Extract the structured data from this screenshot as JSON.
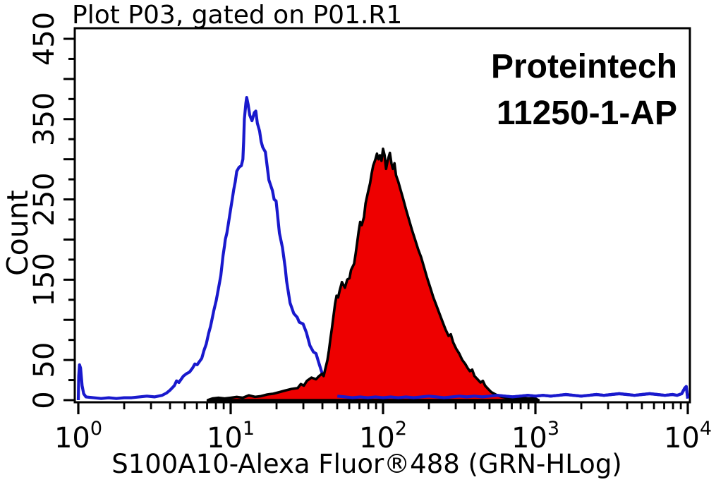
{
  "header": {
    "title": "Plot P03, gated on P01.R1"
  },
  "watermark": {
    "line1": "Proteintech",
    "line2": "11250-1-AP"
  },
  "colors": {
    "background": "#ffffff",
    "frame": "#000000",
    "control_blue": "#1919CD",
    "sample_fill_red": "#EE0000",
    "sample_outline": "#000000",
    "text": "#000000"
  },
  "chart_data": {
    "type": "area",
    "subtype": "flow-cytometry-overlay-histogram",
    "title": "Plot P03, gated on P01.R1",
    "xlabel": "S100A10-Alexa Fluor®488 (GRN-HLog)",
    "ylabel": "Count",
    "x_scale": "log10",
    "xlim": [
      1,
      10000
    ],
    "x_tick_exponents": [
      0,
      1,
      2,
      3,
      4
    ],
    "x_tick_base": "10",
    "ylim": [
      0,
      463
    ],
    "y_ticks_labeled": [
      0,
      50,
      150,
      250,
      350,
      450
    ],
    "y_tick_major_step": 50,
    "y_tick_minor_step": 25,
    "grid": false,
    "legend_position": "none",
    "annotations": [
      "Proteintech",
      "11250-1-AP"
    ],
    "series": [
      {
        "name": "control (unfilled blue outline)",
        "style": "line",
        "color": "#1919CD",
        "peak": {
          "x": 12.7,
          "count": 377
        },
        "points_log10x_count": [
          [
            0,
            0
          ],
          [
            0.003,
            30
          ],
          [
            0.008,
            44
          ],
          [
            0.015,
            40
          ],
          [
            0.025,
            18
          ],
          [
            0.035,
            8
          ],
          [
            0.05,
            4
          ],
          [
            0.1,
            3
          ],
          [
            0.15,
            2
          ],
          [
            0.2,
            3
          ],
          [
            0.25,
            2
          ],
          [
            0.3,
            3
          ],
          [
            0.35,
            3
          ],
          [
            0.4,
            4
          ],
          [
            0.45,
            5
          ],
          [
            0.5,
            4
          ],
          [
            0.55,
            6
          ],
          [
            0.58,
            9
          ],
          [
            0.6,
            12
          ],
          [
            0.63,
            18
          ],
          [
            0.645,
            24
          ],
          [
            0.66,
            22
          ],
          [
            0.675,
            26
          ],
          [
            0.69,
            30
          ],
          [
            0.71,
            33
          ],
          [
            0.73,
            35
          ],
          [
            0.75,
            40
          ],
          [
            0.765,
            45
          ],
          [
            0.78,
            44
          ],
          [
            0.795,
            48
          ],
          [
            0.81,
            52
          ],
          [
            0.825,
            62
          ],
          [
            0.84,
            70
          ],
          [
            0.855,
            83
          ],
          [
            0.868,
            92
          ],
          [
            0.88,
            103
          ],
          [
            0.89,
            112
          ],
          [
            0.905,
            124
          ],
          [
            0.92,
            139
          ],
          [
            0.935,
            155
          ],
          [
            0.95,
            180
          ],
          [
            0.96,
            193
          ],
          [
            0.965,
            200
          ],
          [
            0.975,
            208
          ],
          [
            0.985,
            220
          ],
          [
            1,
            238
          ],
          [
            1.01,
            250
          ],
          [
            1.02,
            262
          ],
          [
            1.03,
            272
          ],
          [
            1.04,
            285
          ],
          [
            1.055,
            290
          ],
          [
            1.07,
            292
          ],
          [
            1.08,
            300
          ],
          [
            1.085,
            322
          ],
          [
            1.09,
            350
          ],
          [
            1.1,
            370
          ],
          [
            1.105,
            377
          ],
          [
            1.115,
            368
          ],
          [
            1.125,
            355
          ],
          [
            1.14,
            348
          ],
          [
            1.155,
            358
          ],
          [
            1.165,
            360
          ],
          [
            1.175,
            345
          ],
          [
            1.19,
            335
          ],
          [
            1.2,
            322
          ],
          [
            1.21,
            315
          ],
          [
            1.228,
            309
          ],
          [
            1.251,
            274
          ],
          [
            1.274,
            261
          ],
          [
            1.285,
            250
          ],
          [
            1.298,
            248
          ],
          [
            1.32,
            208
          ],
          [
            1.34,
            190
          ],
          [
            1.358,
            165
          ],
          [
            1.367,
            148
          ],
          [
            1.39,
            121
          ],
          [
            1.414,
            108
          ],
          [
            1.437,
            103
          ],
          [
            1.45,
            97
          ],
          [
            1.475,
            95
          ],
          [
            1.497,
            84
          ],
          [
            1.52,
            68
          ],
          [
            1.543,
            60
          ],
          [
            1.56,
            58
          ],
          [
            1.576,
            48
          ],
          [
            1.599,
            34
          ],
          [
            1.613,
            24
          ],
          [
            1.632,
            17
          ],
          [
            1.65,
            11
          ],
          [
            1.669,
            8
          ],
          [
            1.7,
            5
          ],
          [
            1.75,
            4
          ],
          [
            1.8,
            3
          ],
          [
            1.85,
            4
          ],
          [
            1.9,
            3
          ],
          [
            1.95,
            4
          ],
          [
            2,
            3
          ],
          [
            2.05,
            4
          ],
          [
            2.1,
            3
          ],
          [
            2.15,
            4
          ],
          [
            2.2,
            3
          ],
          [
            2.25,
            4
          ],
          [
            2.3,
            5
          ],
          [
            2.35,
            4
          ],
          [
            2.4,
            3
          ],
          [
            2.45,
            4
          ],
          [
            2.5,
            5
          ],
          [
            2.55,
            4
          ],
          [
            2.6,
            5
          ],
          [
            2.65,
            4
          ],
          [
            2.7,
            5
          ],
          [
            2.75,
            6
          ],
          [
            2.8,
            5
          ],
          [
            2.85,
            4
          ],
          [
            2.9,
            5
          ],
          [
            2.95,
            6
          ],
          [
            3,
            5
          ],
          [
            3.05,
            6
          ],
          [
            3.1,
            5
          ],
          [
            3.15,
            6
          ],
          [
            3.2,
            7
          ],
          [
            3.25,
            6
          ],
          [
            3.3,
            5
          ],
          [
            3.35,
            6
          ],
          [
            3.4,
            7
          ],
          [
            3.45,
            6
          ],
          [
            3.5,
            7
          ],
          [
            3.55,
            8
          ],
          [
            3.6,
            7
          ],
          [
            3.65,
            6
          ],
          [
            3.7,
            7
          ],
          [
            3.75,
            8
          ],
          [
            3.8,
            7
          ],
          [
            3.85,
            6
          ],
          [
            3.9,
            7
          ],
          [
            3.93,
            6
          ],
          [
            3.96,
            8
          ],
          [
            3.98,
            15
          ],
          [
            3.99,
            17
          ],
          [
            4,
            2
          ]
        ]
      },
      {
        "name": "S100A10-Alexa Fluor 488 (red filled)",
        "style": "filled-area",
        "fill": "#EE0000",
        "stroke": "#000000",
        "peak": {
          "x": 100,
          "count": 313
        },
        "points_log10x_count": [
          [
            0.85,
            0
          ],
          [
            0.88,
            2
          ],
          [
            0.92,
            3
          ],
          [
            0.96,
            2
          ],
          [
            1,
            3
          ],
          [
            1.04,
            4
          ],
          [
            1.08,
            3
          ],
          [
            1.12,
            6
          ],
          [
            1.16,
            4
          ],
          [
            1.2,
            5
          ],
          [
            1.24,
            7
          ],
          [
            1.28,
            8
          ],
          [
            1.32,
            10
          ],
          [
            1.36,
            12
          ],
          [
            1.4,
            14
          ],
          [
            1.44,
            15
          ],
          [
            1.46,
            20
          ],
          [
            1.48,
            18
          ],
          [
            1.5,
            24
          ],
          [
            1.53,
            28
          ],
          [
            1.56,
            26
          ],
          [
            1.58,
            30
          ],
          [
            1.6,
            33
          ],
          [
            1.61,
            30
          ],
          [
            1.62,
            38
          ],
          [
            1.635,
            50
          ],
          [
            1.645,
            62
          ],
          [
            1.655,
            77
          ],
          [
            1.665,
            90
          ],
          [
            1.675,
            105
          ],
          [
            1.685,
            120
          ],
          [
            1.695,
            130
          ],
          [
            1.705,
            128
          ],
          [
            1.715,
            136
          ],
          [
            1.73,
            147
          ],
          [
            1.75,
            140
          ],
          [
            1.765,
            150
          ],
          [
            1.78,
            152
          ],
          [
            1.79,
            162
          ],
          [
            1.81,
            170
          ],
          [
            1.82,
            182
          ],
          [
            1.83,
            196
          ],
          [
            1.84,
            210
          ],
          [
            1.85,
            222
          ],
          [
            1.86,
            218
          ],
          [
            1.875,
            228
          ],
          [
            1.885,
            245
          ],
          [
            1.9,
            258
          ],
          [
            1.915,
            270
          ],
          [
            1.925,
            282
          ],
          [
            1.935,
            292
          ],
          [
            1.95,
            300
          ],
          [
            1.96,
            307
          ],
          [
            1.97,
            300
          ],
          [
            1.98,
            305
          ],
          [
            1.99,
            298
          ],
          [
            2,
            313
          ],
          [
            2.01,
            305
          ],
          [
            2.02,
            288
          ],
          [
            2.03,
            298
          ],
          [
            2.045,
            308
          ],
          [
            2.055,
            295
          ],
          [
            2.065,
            288
          ],
          [
            2.075,
            295
          ],
          [
            2.085,
            280
          ],
          [
            2.1,
            272
          ],
          [
            2.115,
            262
          ],
          [
            2.13,
            252
          ],
          [
            2.15,
            238
          ],
          [
            2.17,
            225
          ],
          [
            2.19,
            212
          ],
          [
            2.21,
            200
          ],
          [
            2.23,
            188
          ],
          [
            2.25,
            178
          ],
          [
            2.27,
            165
          ],
          [
            2.29,
            152
          ],
          [
            2.31,
            140
          ],
          [
            2.33,
            128
          ],
          [
            2.35,
            118
          ],
          [
            2.37,
            108
          ],
          [
            2.39,
            98
          ],
          [
            2.41,
            88
          ],
          [
            2.43,
            80
          ],
          [
            2.445,
            82
          ],
          [
            2.46,
            72
          ],
          [
            2.48,
            64
          ],
          [
            2.5,
            58
          ],
          [
            2.52,
            50
          ],
          [
            2.54,
            45
          ],
          [
            2.555,
            40
          ],
          [
            2.57,
            36
          ],
          [
            2.585,
            38
          ],
          [
            2.6,
            30
          ],
          [
            2.62,
            26
          ],
          [
            2.64,
            22
          ],
          [
            2.655,
            24
          ],
          [
            2.67,
            18
          ],
          [
            2.69,
            14
          ],
          [
            2.71,
            10
          ],
          [
            2.73,
            8
          ],
          [
            2.75,
            6
          ],
          [
            2.78,
            4
          ],
          [
            2.81,
            3
          ],
          [
            2.85,
            2
          ],
          [
            2.9,
            3
          ],
          [
            2.95,
            2
          ],
          [
            3,
            2
          ],
          [
            3.02,
            0
          ]
        ]
      }
    ]
  }
}
